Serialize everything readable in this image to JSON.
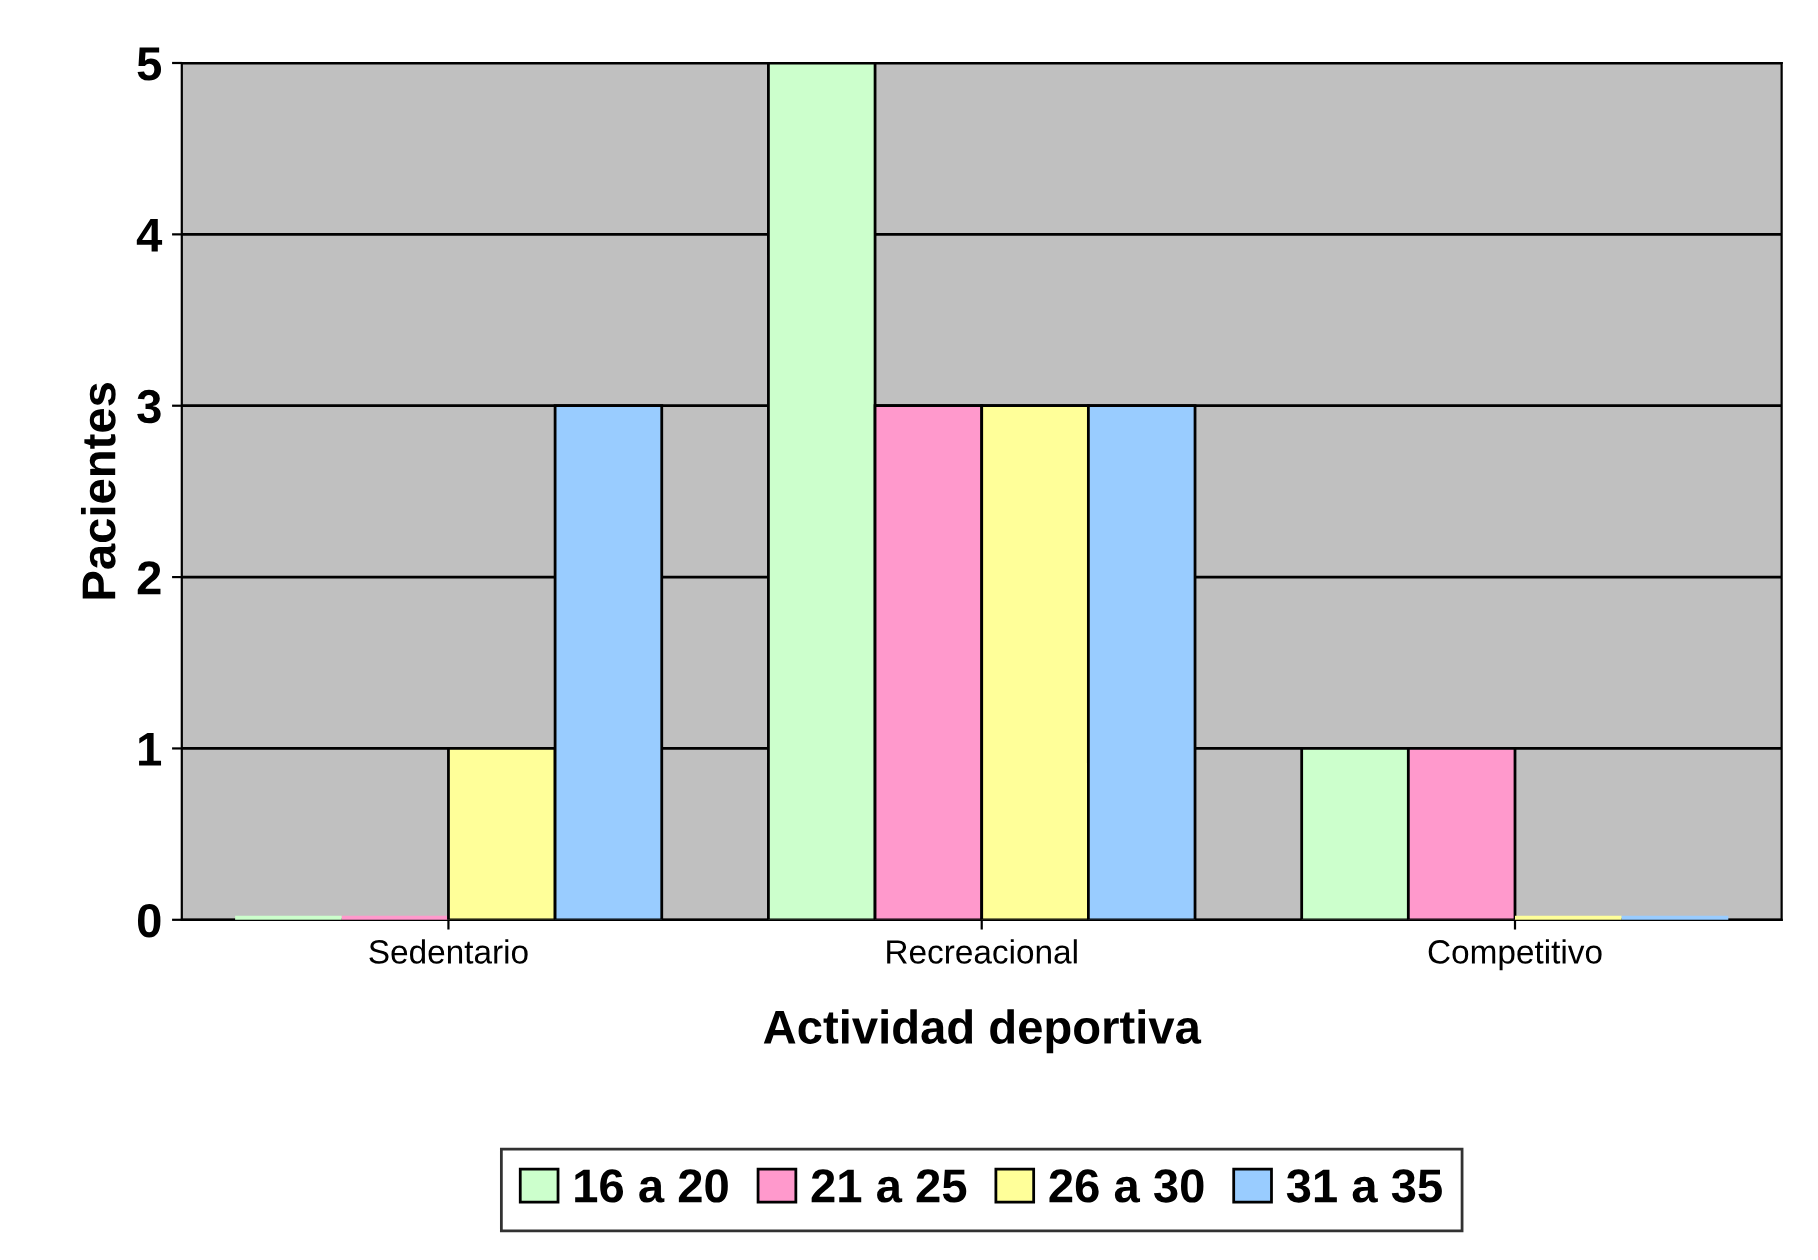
{
  "chart_data": {
    "type": "bar",
    "xlabel": "Actividad deportiva",
    "ylabel": "Pacientes",
    "categories": [
      "Sedentario",
      "Recreacional",
      "Competitivo"
    ],
    "series": [
      {
        "name": "16 a 20",
        "color": "#ccffcc",
        "values": [
          0,
          5,
          1
        ]
      },
      {
        "name": "21 a 25",
        "color": "#ff99cc",
        "values": [
          0,
          3,
          1
        ]
      },
      {
        "name": "26 a 30",
        "color": "#ffff99",
        "values": [
          1,
          3,
          0
        ]
      },
      {
        "name": "31 a 35",
        "color": "#99ccff",
        "values": [
          3,
          3,
          0
        ]
      }
    ],
    "ylim": [
      0,
      5
    ],
    "yticks": [
      0,
      1,
      2,
      3,
      4,
      5
    ],
    "grid": "y",
    "legend": "bottom"
  }
}
